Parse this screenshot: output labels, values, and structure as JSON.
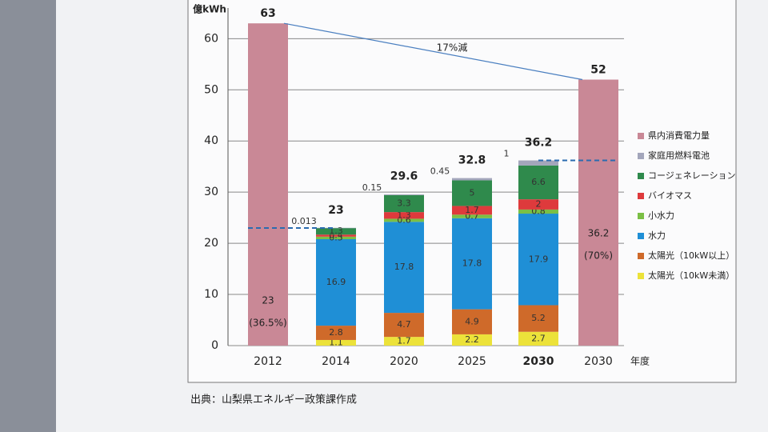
{
  "chart_data": {
    "type": "stacked_bar",
    "y_label": "億kWh",
    "x_label": "年度",
    "source": "出典：山梨県エネルギー政策課作成",
    "categories": [
      "2012",
      "2014",
      "2020",
      "2025",
      "2030",
      "2030"
    ],
    "bold_categories": [
      4
    ],
    "ylim": [
      0,
      66
    ],
    "yticks": [
      0,
      10,
      20,
      30,
      40,
      50,
      60
    ],
    "grid": true,
    "series": [
      {
        "name": "県内消費電力量",
        "color": "#c98896",
        "values": [
          63,
          null,
          null,
          null,
          null,
          52
        ]
      },
      {
        "name": "家庭用燃料電池",
        "color": "#a3a6bb",
        "values": [
          null,
          0.013,
          0.15,
          0.45,
          1,
          null
        ]
      },
      {
        "name": "コージェネレーション",
        "color": "#2f8a4c",
        "values": [
          null,
          1.3,
          3.3,
          5,
          6.6,
          null
        ]
      },
      {
        "name": "バイオマス",
        "color": "#de3a3c",
        "values": [
          null,
          0.4,
          1.3,
          1.7,
          2,
          null
        ]
      },
      {
        "name": "小水力",
        "color": "#7bbf45",
        "values": [
          null,
          0.5,
          0.6,
          0.7,
          0.8,
          null
        ]
      },
      {
        "name": "水力",
        "color": "#1f8fd6",
        "values": [
          null,
          16.9,
          17.8,
          17.8,
          17.9,
          null
        ]
      },
      {
        "name": "太陽光（10kW以上）",
        "color": "#cf6a2a",
        "values": [
          null,
          2.8,
          4.7,
          4.9,
          5.2,
          null
        ]
      },
      {
        "name": "太陽光（10kW未満）",
        "color": "#ece23a",
        "values": [
          null,
          1.1,
          1.7,
          2.2,
          2.7,
          null
        ]
      }
    ],
    "totals": [
      null,
      23,
      29.6,
      32.8,
      36.2,
      null
    ],
    "annotations": [
      {
        "category": 0,
        "value": 23,
        "label": "23",
        "note": "(36.5%)"
      },
      {
        "category": 5,
        "value": 36.2,
        "label": "36.2",
        "note": "(70%)"
      }
    ],
    "trend_label": "17%減"
  }
}
